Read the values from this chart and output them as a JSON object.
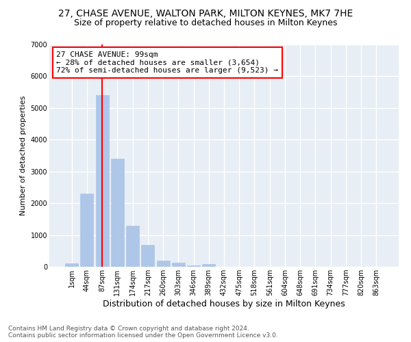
{
  "title_line1": "27, CHASE AVENUE, WALTON PARK, MILTON KEYNES, MK7 7HE",
  "title_line2": "Size of property relative to detached houses in Milton Keynes",
  "xlabel": "Distribution of detached houses by size in Milton Keynes",
  "ylabel": "Number of detached properties",
  "bar_labels": [
    "1sqm",
    "44sqm",
    "87sqm",
    "131sqm",
    "174sqm",
    "217sqm",
    "260sqm",
    "303sqm",
    "346sqm",
    "389sqm",
    "432sqm",
    "475sqm",
    "518sqm",
    "561sqm",
    "604sqm",
    "648sqm",
    "691sqm",
    "734sqm",
    "777sqm",
    "820sqm",
    "863sqm"
  ],
  "bar_heights": [
    100,
    2300,
    5400,
    3400,
    1300,
    700,
    200,
    120,
    50,
    80,
    0,
    0,
    0,
    0,
    0,
    0,
    0,
    0,
    0,
    0,
    0
  ],
  "bar_color": "#aec6e8",
  "bar_edge_color": "#aec6e8",
  "background_color": "#e8eef5",
  "grid_color": "#ffffff",
  "annotation_line1": "27 CHASE AVENUE: 99sqm",
  "annotation_line2": "← 28% of detached houses are smaller (3,654)",
  "annotation_line3": "72% of semi-detached houses are larger (9,523) →",
  "annotation_box_color": "red",
  "vline_color": "red",
  "vline_x_index": 2.0,
  "ylim": [
    0,
    7000
  ],
  "yticks": [
    0,
    1000,
    2000,
    3000,
    4000,
    5000,
    6000,
    7000
  ],
  "footnote": "Contains HM Land Registry data © Crown copyright and database right 2024.\nContains public sector information licensed under the Open Government Licence v3.0.",
  "annotation_fontsize": 8,
  "title_fontsize1": 10,
  "title_fontsize2": 9,
  "ylabel_fontsize": 8,
  "xlabel_fontsize": 9,
  "footnote_fontsize": 6.5,
  "tick_labelsize": 7
}
